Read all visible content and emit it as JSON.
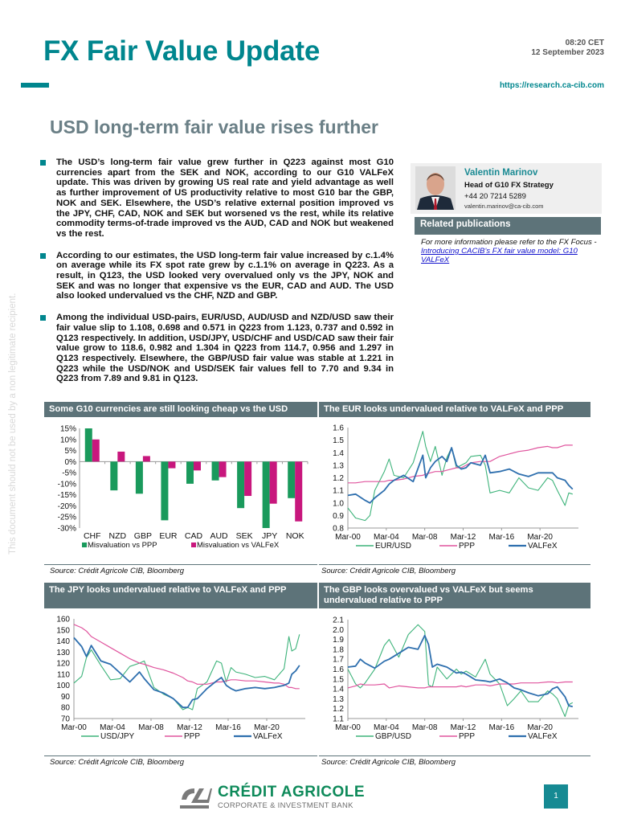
{
  "header": {
    "title": "FX Fair Value Update",
    "time": "08:20 CET",
    "date": "12 September 2023",
    "url": "https://research.ca-cib.com",
    "subtitle": "USD long-term fair value rises further",
    "accent_color": "#00868e"
  },
  "watermark": "This document should not be used by a non legitimate recipient.",
  "bullets": [
    "The USD’s long-term fair value grew further in Q223 against most G10 currencies apart from the SEK and NOK, according to our G10 VALFeX update. This was driven by growing US real rate and yield advantage as well as further improvement of US productivity relative to most G10 bar the GBP, NOK and SEK. Elsewhere, the USD’s relative external position improved vs the JPY, CHF, CAD, NOK and SEK but worsened vs the rest, while its relative commodity terms-of-trade improved vs the AUD, CAD and NOK but weakened vs the rest.",
    "According to our estimates, the USD long-term fair value increased by c.1.4% on average while its FX spot rate grew by c.1.1% on average in Q223. As a result, in Q123, the USD looked very overvalued only vs the JPY, NOK and SEK and was no longer that expensive vs the EUR, CAD and AUD. The USD also looked undervalued vs the CHF, NZD and GBP.",
    "Among the individual USD-pairs, EUR/USD, AUD/USD and NZD/USD saw their fair value slip to 1.108, 0.698 and 0.571 in Q223 from 1.123, 0.737 and 0.592 in Q123 respectively. In addition, USD/JPY, USD/CHF and USD/CAD saw their fair value grow to 118.6, 0.982 and 1.304 in Q223 from 114.7, 0.956 and 1.297 in Q123 respectively. Elsewhere, the GBP/USD fair value was stable at 1.221 in Q223 while the USD/NOK and USD/SEK fair values fell to 7.70 and 9.34 in Q223 from 7.89 and 9.81 in Q123."
  ],
  "analyst": {
    "name": "Valentin Marinov",
    "role": "Head of G10 FX Strategy",
    "phone": "+44 20 7214 5289",
    "email": "valentin.marinov@ca-cib.com"
  },
  "related": {
    "heading": "Related publications",
    "text": "For more information please refer to the FX Focus - ",
    "link_text": "Introducing CACIB's FX fair value model: G10 VALFeX"
  },
  "sources": {
    "chart1": "Source: Crédit Agricole CIB, Bloomberg",
    "chart2": "Source: Crédit Agricole CIB, Bloomberg",
    "chart3": "Source: Crédit Agricole CIB, Bloomberg",
    "chart4": "Source: Crédit Agricole CIB, Bloomberg"
  },
  "footer": {
    "logo_name": "CRÉDIT AGRICOLE",
    "logo_sub": "CORPORATE & INVESTMENT BANK",
    "page_number": "1"
  },
  "colors": {
    "green": "#1a9a5c",
    "magenta": "#c8177d",
    "line_green": "#3db37a",
    "line_pink": "#e0559e",
    "line_blue": "#2e6fae",
    "header_bg": "#5d7379"
  },
  "chart_data": [
    {
      "type": "bar",
      "title": "Some G10 currencies are still looking cheap vs the USD",
      "categories": [
        "CHF",
        "NZD",
        "GBP",
        "EUR",
        "CAD",
        "AUD",
        "SEK",
        "JPY",
        "NOK"
      ],
      "series": [
        {
          "name": "Misvaluation vs PPP",
          "values": [
            15,
            -13,
            -14.5,
            -26.5,
            -10,
            -8.5,
            -21,
            -30,
            -16.5
          ]
        },
        {
          "name": "Misvaluation vs VALFeX",
          "values": [
            10,
            4.5,
            2.5,
            -3,
            -4,
            -7,
            -15.5,
            -19,
            -27
          ]
        }
      ],
      "yticks": [
        "15%",
        "10%",
        "5%",
        "0%",
        "-5%",
        "-10%",
        "-15%",
        "-20%",
        "-25%",
        "-30%"
      ],
      "ylim": [
        -30,
        15
      ],
      "legend_position": "bottom"
    },
    {
      "type": "line",
      "title": "The EUR looks undervalued relative to VALFeX and PPP",
      "xticks": [
        "Mar-00",
        "Mar-04",
        "Mar-08",
        "Mar-12",
        "Mar-16",
        "Mar-20"
      ],
      "yticks": [
        "1.6",
        "1.5",
        "1.4",
        "1.3",
        "1.2",
        "1.1",
        "1.0",
        "0.9",
        "0.8"
      ],
      "ylim": [
        0.8,
        1.6
      ],
      "x": [
        2000.2,
        2001,
        2002,
        2002.5,
        2003,
        2004,
        2004.5,
        2005,
        2006,
        2007,
        2008,
        2008.3,
        2008.8,
        2009.3,
        2010,
        2010.5,
        2011,
        2011.5,
        2012,
        2012.5,
        2013,
        2014,
        2014.5,
        2015,
        2016,
        2017,
        2018,
        2019,
        2020,
        2021,
        2021.5,
        2022,
        2022.8,
        2023.2,
        2023.6
      ],
      "series": [
        {
          "name": "EUR/USD",
          "values": [
            0.96,
            0.88,
            0.86,
            0.9,
            1.1,
            1.25,
            1.35,
            1.22,
            1.2,
            1.32,
            1.57,
            1.45,
            1.33,
            1.45,
            1.22,
            1.36,
            1.44,
            1.28,
            1.3,
            1.32,
            1.37,
            1.38,
            1.3,
            1.08,
            1.1,
            1.08,
            1.2,
            1.12,
            1.1,
            1.2,
            1.18,
            1.1,
            0.98,
            1.08,
            1.07
          ]
        },
        {
          "name": "PPP",
          "values": [
            1.16,
            1.16,
            1.17,
            1.17,
            1.17,
            1.17,
            1.18,
            1.18,
            1.19,
            1.21,
            1.22,
            1.23,
            1.24,
            1.25,
            1.25,
            1.26,
            1.27,
            1.28,
            1.28,
            1.3,
            1.32,
            1.33,
            1.33,
            1.33,
            1.37,
            1.39,
            1.41,
            1.42,
            1.44,
            1.45,
            1.44,
            1.44,
            1.46,
            1.46,
            1.46
          ]
        },
        {
          "name": "VALFeX",
          "values": [
            1.06,
            1.07,
            1.02,
            1.0,
            1.04,
            1.1,
            1.15,
            1.18,
            1.22,
            1.17,
            1.38,
            1.2,
            1.28,
            1.33,
            1.37,
            1.33,
            1.44,
            1.3,
            1.27,
            1.28,
            1.32,
            1.3,
            1.38,
            1.24,
            1.25,
            1.27,
            1.23,
            1.21,
            1.24,
            1.24,
            1.24,
            1.2,
            1.18,
            1.14,
            1.11
          ]
        }
      ],
      "legend_position": "bottom"
    },
    {
      "type": "line",
      "title": "The JPY looks undervalued relative to VALFeX and PPP",
      "xticks": [
        "Mar-00",
        "Mar-04",
        "Mar-08",
        "Mar-12",
        "Mar-16",
        "Mar-20"
      ],
      "yticks": [
        "160",
        "150",
        "140",
        "130",
        "120",
        "110",
        "100",
        "90",
        "80",
        "70"
      ],
      "ylim": [
        70,
        160
      ],
      "x": [
        2000.2,
        2001,
        2001.5,
        2002,
        2003,
        2004,
        2005,
        2006,
        2007,
        2007.5,
        2008.5,
        2009.5,
        2010.5,
        2011.5,
        2012,
        2012.5,
        2013,
        2014,
        2015,
        2015.5,
        2016,
        2016.5,
        2017,
        2018,
        2019,
        2020,
        2021,
        2021.5,
        2022,
        2022.5,
        2022.8,
        2023.2,
        2023.6
      ],
      "series": [
        {
          "name": "USD/JPY",
          "values": [
            102,
            108,
            125,
            132,
            118,
            105,
            106,
            117,
            120,
            122,
            98,
            92,
            88,
            78,
            80,
            78,
            97,
            103,
            122,
            120,
            103,
            116,
            112,
            110,
            107,
            108,
            105,
            110,
            115,
            144,
            131,
            133,
            146
          ]
        },
        {
          "name": "PPP",
          "values": [
            155,
            152,
            149,
            144,
            139,
            134,
            129,
            124,
            120,
            119,
            116,
            114,
            111,
            107,
            104,
            103,
            101,
            101,
            103,
            103,
            104,
            105,
            105,
            104,
            104,
            103,
            102,
            102,
            101,
            98,
            98,
            97,
            97
          ]
        },
        {
          "name": "VALFeX",
          "values": [
            143,
            135,
            126,
            136,
            122,
            119,
            111,
            103,
            112,
            106,
            96,
            93,
            88,
            80,
            80,
            87,
            88,
            97,
            104,
            107,
            100,
            97,
            95,
            97,
            98,
            97,
            98,
            99,
            100,
            102,
            110,
            113,
            118
          ]
        }
      ],
      "legend_position": "bottom"
    },
    {
      "type": "line",
      "title": "The GBP looks overvalued vs VALFeX but seems undervalued relative to PPP",
      "xticks": [
        "Mar-00",
        "Mar-04",
        "Mar-08",
        "Mar-12",
        "Mar-16",
        "Mar-20"
      ],
      "yticks": [
        "2.1",
        "2.0",
        "1.9",
        "1.8",
        "1.7",
        "1.6",
        "1.5",
        "1.4",
        "1.3",
        "1.2",
        "1.1"
      ],
      "ylim": [
        1.1,
        2.1
      ],
      "x": [
        2000.2,
        2001,
        2001.5,
        2002,
        2003,
        2004,
        2004.5,
        2005.5,
        2006.5,
        2007.5,
        2008.2,
        2008.6,
        2009,
        2009.5,
        2010.5,
        2011.5,
        2012,
        2012.5,
        2013.5,
        2014.5,
        2015,
        2016,
        2016.8,
        2017.5,
        2018.2,
        2019,
        2020,
        2021,
        2021.5,
        2022,
        2022.8,
        2023.2,
        2023.6
      ],
      "series": [
        {
          "name": "GBP/USD",
          "values": [
            1.6,
            1.45,
            1.41,
            1.46,
            1.6,
            1.84,
            1.9,
            1.72,
            1.95,
            2.05,
            1.98,
            1.44,
            1.42,
            1.62,
            1.5,
            1.6,
            1.55,
            1.58,
            1.52,
            1.7,
            1.55,
            1.45,
            1.23,
            1.3,
            1.38,
            1.27,
            1.27,
            1.38,
            1.35,
            1.3,
            1.12,
            1.24,
            1.26
          ]
        },
        {
          "name": "PPP",
          "values": [
            1.41,
            1.43,
            1.45,
            1.44,
            1.44,
            1.45,
            1.41,
            1.43,
            1.42,
            1.41,
            1.41,
            1.42,
            1.42,
            1.42,
            1.42,
            1.42,
            1.43,
            1.42,
            1.44,
            1.44,
            1.43,
            1.45,
            1.45,
            1.45,
            1.46,
            1.46,
            1.46,
            1.47,
            1.47,
            1.46,
            1.47,
            1.47,
            1.47
          ]
        },
        {
          "name": "VALFeX",
          "values": [
            1.62,
            1.63,
            1.7,
            1.66,
            1.61,
            1.68,
            1.7,
            1.76,
            1.82,
            1.8,
            1.94,
            1.85,
            1.62,
            1.65,
            1.62,
            1.56,
            1.57,
            1.55,
            1.49,
            1.48,
            1.47,
            1.5,
            1.46,
            1.41,
            1.39,
            1.36,
            1.33,
            1.35,
            1.4,
            1.42,
            1.32,
            1.23,
            1.22
          ]
        }
      ],
      "legend_position": "bottom"
    }
  ]
}
